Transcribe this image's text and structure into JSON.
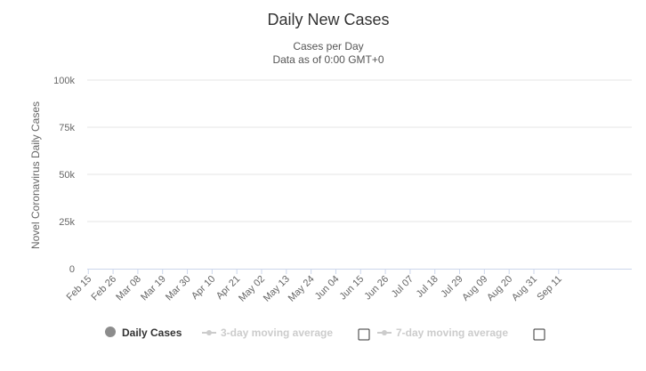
{
  "chart_data": {
    "type": "bar",
    "title": "Daily New Cases",
    "subtitle_lines": [
      "Cases per Day",
      "Data as of 0:00 GMT+0"
    ],
    "ylabel": "Novel Coronavirus Daily Cases",
    "xlabel": "",
    "ylim": [
      0,
      100000
    ],
    "ytick_labels": [
      {
        "value": 0,
        "label": "0"
      },
      {
        "value": 25000,
        "label": "25k"
      },
      {
        "value": 50000,
        "label": "50k"
      },
      {
        "value": 75000,
        "label": "75k"
      },
      {
        "value": 100000,
        "label": "100k"
      }
    ],
    "x_tick_labels": [
      "Feb 15",
      "Feb 26",
      "Mar 08",
      "Mar 19",
      "Mar 30",
      "Apr 10",
      "Apr 21",
      "May 02",
      "May 13",
      "May 24",
      "Jun 04",
      "Jun 15",
      "Jun 26",
      "Jul 07",
      "Jul 18",
      "Jul 29",
      "Aug 09",
      "Aug 20",
      "Aug 31",
      "Sep 11"
    ],
    "tick_every_days": 11,
    "grid": true,
    "series": [
      {
        "name": "Daily Cases",
        "color": "#8c8c8c",
        "values": [
          0,
          0,
          0,
          0,
          0,
          0,
          0,
          0,
          0,
          0,
          0,
          0,
          0,
          0,
          0,
          0,
          0,
          0,
          0,
          0,
          0,
          0,
          0,
          0,
          0,
          0,
          0,
          0,
          0,
          0,
          0,
          0,
          0,
          0,
          0,
          0,
          0,
          0,
          0,
          0,
          0,
          0,
          0,
          0,
          0,
          0,
          0,
          0,
          0,
          0,
          0,
          0,
          0,
          0,
          0,
          0,
          0,
          0,
          0,
          0,
          0,
          0,
          0,
          0,
          0,
          0,
          0,
          0,
          0,
          0,
          0,
          0,
          0,
          0,
          0,
          0,
          0,
          0,
          0,
          0,
          0,
          0,
          0,
          0,
          0,
          0,
          0,
          0,
          0,
          0,
          0,
          0,
          0,
          0,
          0,
          0,
          0,
          0,
          0,
          0,
          0,
          0,
          0,
          0,
          0,
          0,
          0,
          0,
          0,
          0,
          0,
          0,
          0,
          0,
          0,
          0,
          0,
          0,
          0,
          0,
          0,
          0,
          0,
          0,
          0,
          0,
          0,
          0,
          0,
          0,
          0,
          0,
          0,
          0,
          0,
          0,
          0,
          0,
          0,
          0,
          0,
          0,
          0,
          0,
          0,
          0,
          0,
          0,
          0,
          0,
          0,
          0,
          0,
          0,
          0,
          0,
          0,
          0,
          0,
          0,
          0,
          0,
          0,
          0,
          0,
          0,
          0,
          0,
          0,
          0,
          0,
          0,
          0,
          0,
          0,
          0,
          0,
          0,
          0,
          0,
          0,
          0,
          0,
          0,
          0,
          0,
          0,
          0,
          0,
          0,
          0,
          0,
          0,
          0,
          0,
          0,
          0,
          0,
          0,
          0,
          0,
          0,
          0,
          0,
          0,
          0,
          0,
          0,
          0,
          0,
          0,
          0,
          0,
          0,
          0,
          0,
          0,
          0,
          0,
          0,
          0,
          0,
          0,
          0,
          0,
          0,
          0,
          0,
          0,
          0,
          0,
          0,
          0,
          0,
          0,
          0,
          0,
          0,
          0,
          0,
          0,
          0
        ]
      }
    ],
    "legend": {
      "placement": "bottom",
      "items": [
        {
          "label": "Daily Cases",
          "active": true,
          "color": "#8c8c8c"
        },
        {
          "label": "3-day moving average",
          "active": false,
          "color": "#cccccc"
        },
        {
          "label": "7-day moving average",
          "active": false,
          "color": "#cccccc"
        }
      ]
    }
  }
}
